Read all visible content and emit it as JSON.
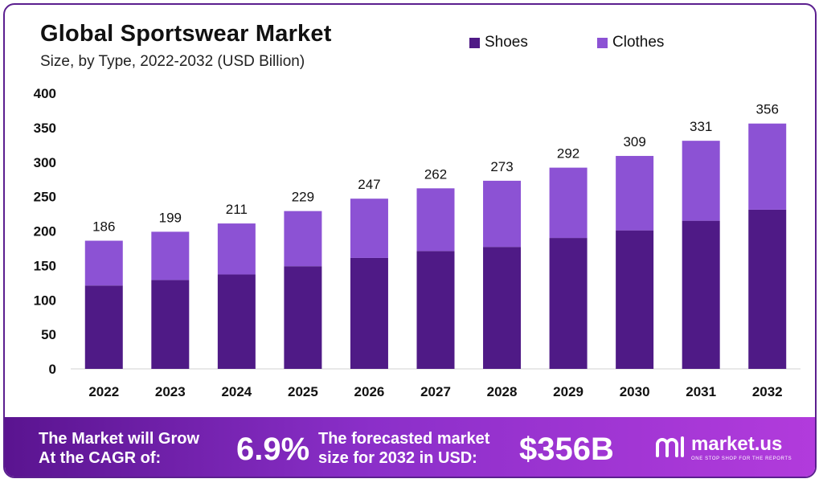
{
  "header": {
    "title": "Global Sportswear Market",
    "subtitle": "Size, by Type, 2022-2032 (USD Billion)"
  },
  "legend": {
    "items": [
      {
        "label": "Shoes",
        "color": "#4f1a86"
      },
      {
        "label": "Clothes",
        "color": "#8c52d4"
      }
    ]
  },
  "chart_data": {
    "type": "bar",
    "stacked": true,
    "categories": [
      "2022",
      "2023",
      "2024",
      "2025",
      "2026",
      "2027",
      "2028",
      "2029",
      "2030",
      "2031",
      "2032"
    ],
    "series": [
      {
        "name": "Shoes",
        "color": "#4f1a86",
        "values": [
          121,
          129,
          137,
          149,
          161,
          171,
          177,
          190,
          201,
          215,
          231
        ]
      },
      {
        "name": "Clothes",
        "color": "#8c52d4",
        "values": [
          65,
          70,
          74,
          80,
          86,
          91,
          96,
          102,
          108,
          116,
          125
        ]
      }
    ],
    "totals": [
      186,
      199,
      211,
      229,
      247,
      262,
      273,
      292,
      309,
      331,
      356
    ],
    "ylim": [
      0,
      400
    ],
    "yticks": [
      0,
      50,
      100,
      150,
      200,
      250,
      300,
      350,
      400
    ],
    "legend_position": "top-right",
    "grid": false
  },
  "footer": {
    "cagr_label_line1": "The Market will Grow",
    "cagr_label_line2": "At the CAGR of:",
    "cagr_value": "6.9%",
    "forecast_label_line1": "The forecasted market",
    "forecast_label_line2": "size for 2032 in USD:",
    "forecast_value": "$356B",
    "brand_name": "market.us",
    "brand_tagline": "ONE STOP SHOP FOR THE REPORTS",
    "brand_icon": "market-us-logo-icon"
  }
}
